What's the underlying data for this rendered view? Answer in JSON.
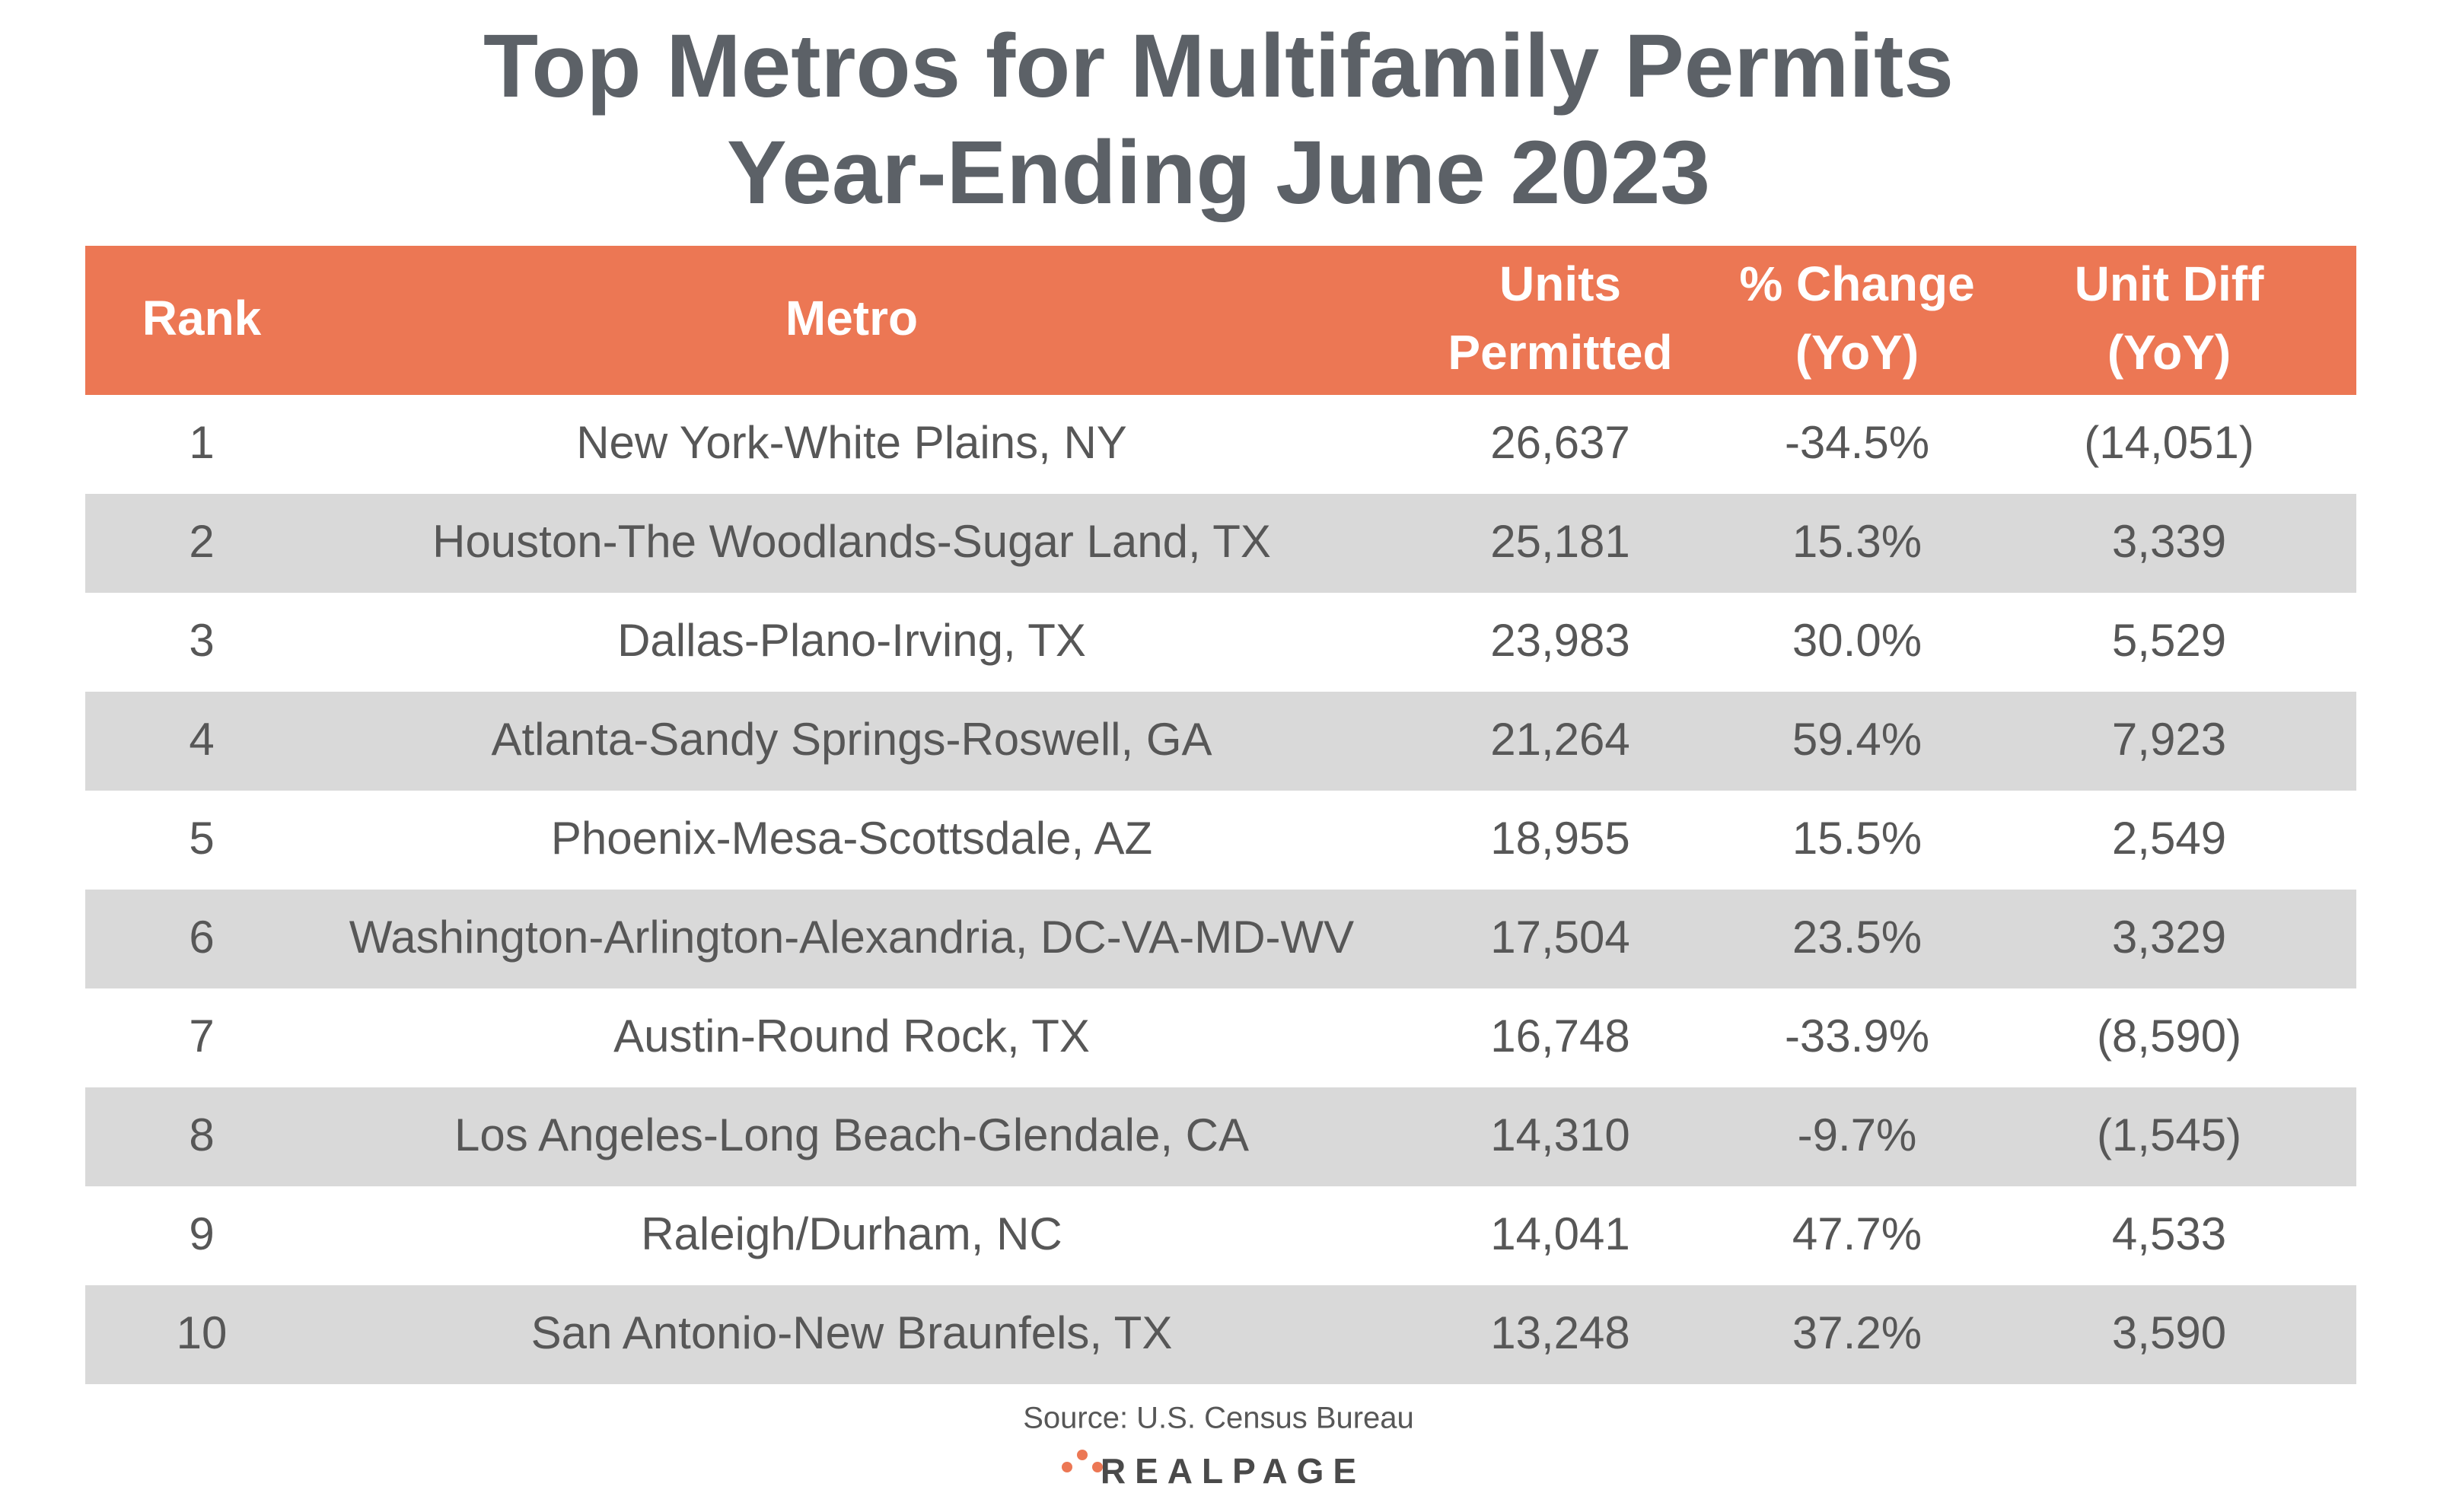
{
  "header": {
    "title": [
      "Top Metros for Multifamily Permits",
      "Year-Ending June 2023"
    ]
  },
  "table": {
    "columns": [
      [
        "Rank"
      ],
      [
        "Metro"
      ],
      [
        "Units",
        "Permitted"
      ],
      [
        "% Change",
        "(YoY)"
      ],
      [
        "Unit Diff",
        "(YoY)"
      ]
    ],
    "rows": [
      [
        "1",
        "New York-White Plains, NY",
        "26,637",
        "-34.5%",
        "(14,051)"
      ],
      [
        "2",
        "Houston-The Woodlands-Sugar Land, TX",
        "25,181",
        "15.3%",
        "3,339"
      ],
      [
        "3",
        "Dallas-Plano-Irving, TX",
        "23,983",
        "30.0%",
        "5,529"
      ],
      [
        "4",
        "Atlanta-Sandy Springs-Roswell, GA",
        "21,264",
        "59.4%",
        "7,923"
      ],
      [
        "5",
        "Phoenix-Mesa-Scottsdale, AZ",
        "18,955",
        "15.5%",
        "2,549"
      ],
      [
        "6",
        "Washington-Arlington-Alexandria, DC-VA-MD-WV",
        "17,504",
        "23.5%",
        "3,329"
      ],
      [
        "7",
        "Austin-Round Rock, TX",
        "16,748",
        "-33.9%",
        "(8,590)"
      ],
      [
        "8",
        "Los Angeles-Long Beach-Glendale, CA",
        "14,310",
        "-9.7%",
        "(1,545)"
      ],
      [
        "9",
        "Raleigh/Durham, NC",
        "14,041",
        "47.7%",
        "4,533"
      ],
      [
        "10",
        "San Antonio-New Braunfels, TX",
        "13,248",
        "37.2%",
        "3,590"
      ]
    ]
  },
  "footer": {
    "source": "Source: U.S. Census Bureau",
    "logo": "REALPAGE"
  }
}
